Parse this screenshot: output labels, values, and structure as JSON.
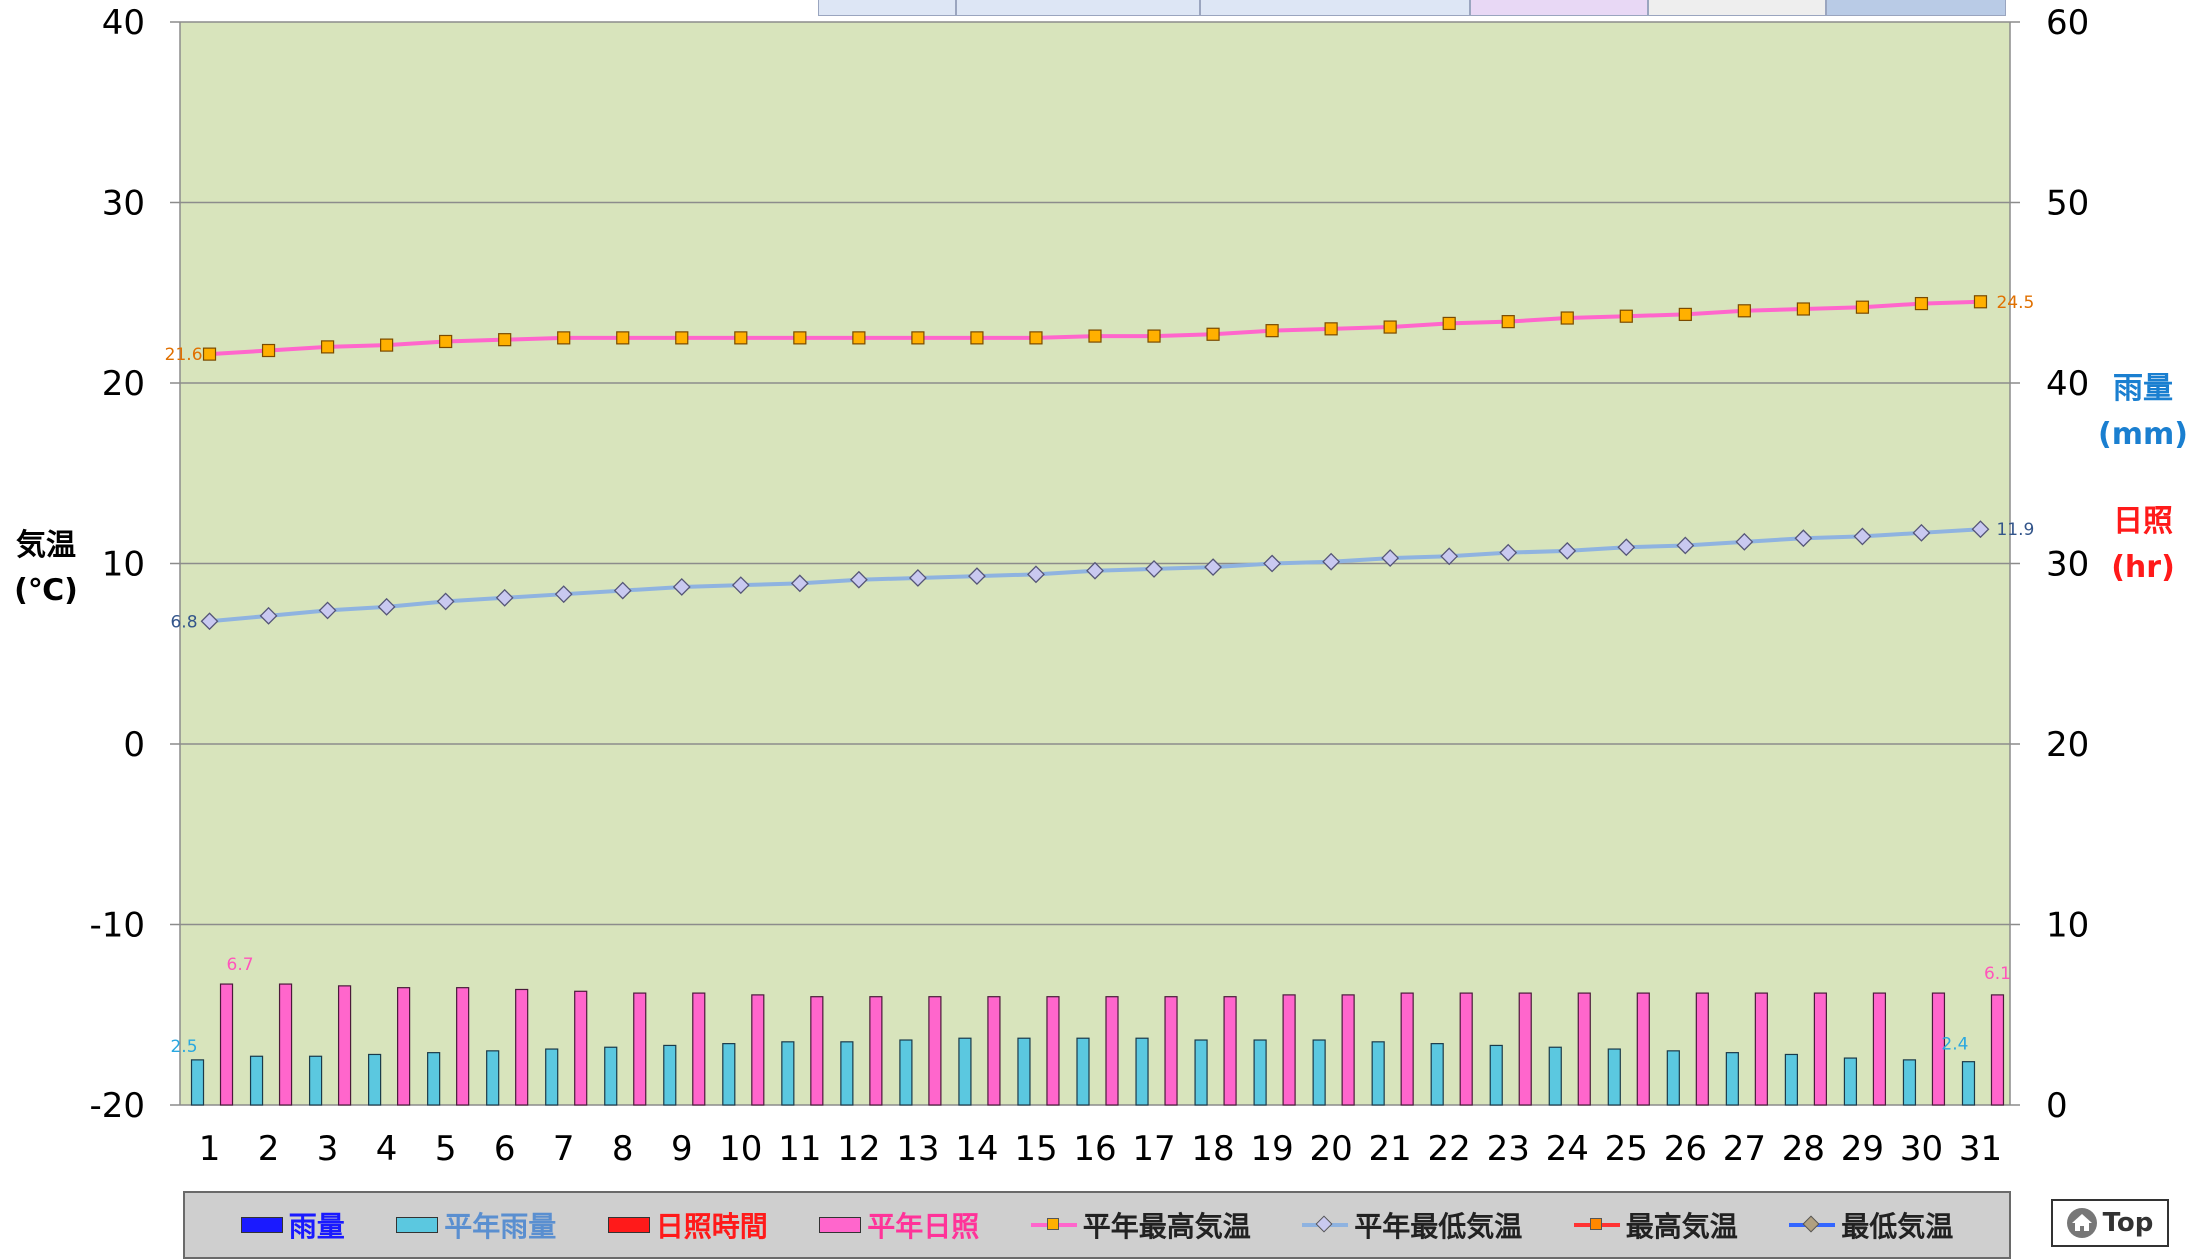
{
  "chart_data": {
    "type": "bar",
    "categories": [
      "1",
      "2",
      "3",
      "4",
      "5",
      "6",
      "7",
      "8",
      "9",
      "10",
      "11",
      "12",
      "13",
      "14",
      "15",
      "16",
      "17",
      "18",
      "19",
      "20",
      "21",
      "22",
      "23",
      "24",
      "25",
      "26",
      "27",
      "28",
      "29",
      "30",
      "31"
    ],
    "y_left": {
      "label_lines": [
        "気温",
        "(℃)"
      ],
      "ylim": [
        -20,
        40
      ],
      "ticks": [
        "-20",
        "-10",
        "0",
        "10",
        "20",
        "30",
        "40"
      ]
    },
    "y_right": {
      "rain_label_lines": [
        "雨量",
        "(mm)"
      ],
      "sun_label_lines": [
        "日照",
        "(hr)"
      ],
      "ylim": [
        0,
        60
      ],
      "ticks": [
        "0",
        "10",
        "20",
        "30",
        "40",
        "50",
        "60"
      ]
    },
    "grid": true,
    "series": [
      {
        "name": "平年雨量",
        "kind": "bar",
        "axis": "right",
        "color": "#5bc8e0",
        "values": [
          2.5,
          2.7,
          2.7,
          2.8,
          2.9,
          3.0,
          3.1,
          3.2,
          3.3,
          3.4,
          3.5,
          3.5,
          3.6,
          3.7,
          3.7,
          3.7,
          3.7,
          3.6,
          3.6,
          3.6,
          3.5,
          3.4,
          3.3,
          3.2,
          3.1,
          3.0,
          2.9,
          2.8,
          2.6,
          2.5,
          2.4
        ]
      },
      {
        "name": "平年日照",
        "kind": "bar",
        "axis": "right",
        "color": "#ff66cc",
        "values": [
          6.7,
          6.7,
          6.6,
          6.5,
          6.5,
          6.4,
          6.3,
          6.2,
          6.2,
          6.1,
          6.0,
          6.0,
          6.0,
          6.0,
          6.0,
          6.0,
          6.0,
          6.0,
          6.1,
          6.1,
          6.2,
          6.2,
          6.2,
          6.2,
          6.2,
          6.2,
          6.2,
          6.2,
          6.2,
          6.2,
          6.1
        ]
      },
      {
        "name": "平年最高気温",
        "kind": "line",
        "axis": "left",
        "color": "#ff66cc",
        "marker": "square",
        "values": [
          21.6,
          21.8,
          22.0,
          22.1,
          22.3,
          22.4,
          22.5,
          22.5,
          22.5,
          22.5,
          22.5,
          22.5,
          22.5,
          22.5,
          22.5,
          22.6,
          22.6,
          22.7,
          22.9,
          23.0,
          23.1,
          23.3,
          23.4,
          23.6,
          23.7,
          23.8,
          24.0,
          24.1,
          24.2,
          24.4,
          24.5
        ]
      },
      {
        "name": "平年最低気温",
        "kind": "line",
        "axis": "left",
        "color": "#8fb3e0",
        "marker": "diamond",
        "values": [
          6.8,
          7.1,
          7.4,
          7.6,
          7.9,
          8.1,
          8.3,
          8.5,
          8.7,
          8.8,
          8.9,
          9.1,
          9.2,
          9.3,
          9.4,
          9.6,
          9.7,
          9.8,
          10.0,
          10.1,
          10.3,
          10.4,
          10.6,
          10.7,
          10.9,
          11.0,
          11.2,
          11.4,
          11.5,
          11.7,
          11.9
        ]
      }
    ],
    "data_labels": {
      "max_first": "21.6",
      "max_last": "24.5",
      "min_first": "6.8",
      "min_last": "11.9",
      "rain_first": "2.5",
      "rain_last": "2.4",
      "sun_first": "6.7",
      "sun_last": "6.1"
    },
    "legend_placement": "bottom",
    "legend": [
      {
        "label": "雨量",
        "type": "rect",
        "color": "#1a1aff",
        "text_color": "#1a1aff"
      },
      {
        "label": "平年雨量",
        "type": "rect",
        "color": "#5bc8e0",
        "text_color": "#5a8fd0"
      },
      {
        "label": "日照時間",
        "type": "rect",
        "color": "#ff1a1a",
        "text_color": "#ff1a1a"
      },
      {
        "label": "平年日照",
        "type": "rect",
        "color": "#ff66cc",
        "text_color": "#ff3399"
      },
      {
        "label": "平年最高気温",
        "type": "line",
        "color": "#ff66cc",
        "marker_color": "#ffb000",
        "text_color": "#222222"
      },
      {
        "label": "平年最低気温",
        "type": "line",
        "color": "#8fb3e0",
        "marker_color": "#c9c9f0",
        "text_color": "#222222"
      },
      {
        "label": "最高気温",
        "type": "line",
        "color": "#ff3333",
        "marker_color": "#ff8800",
        "text_color": "#222222"
      },
      {
        "label": "最低気温",
        "type": "line",
        "color": "#3366ff",
        "marker_color": "#b0a080",
        "text_color": "#222222"
      }
    ],
    "colors": {
      "plot_bg": "#d8e4bc",
      "grid": "#8c8c8c",
      "rain_axis_label": "#1a7fd0",
      "sun_axis_label": "#ff1a1a",
      "max_label": "#e07000",
      "min_label": "#33558a",
      "rain_label": "#2aa8e0",
      "sun_label": "#ff55bb"
    }
  },
  "top_button": {
    "label": "Top",
    "icon": "home-icon"
  }
}
